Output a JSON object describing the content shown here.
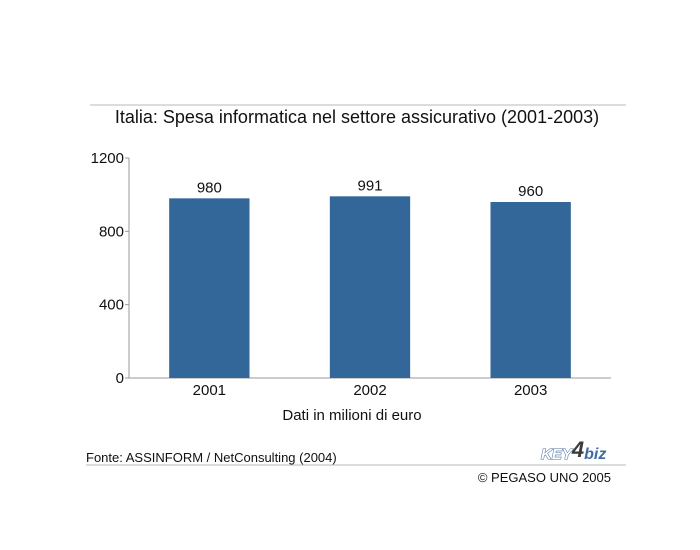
{
  "chart_data": {
    "type": "bar",
    "title": "Italia: Spesa informatica nel settore assicurativo (2001-2003)",
    "categories": [
      "2001",
      "2002",
      "2003"
    ],
    "values": [
      980,
      991,
      960
    ],
    "data_labels": [
      "980",
      "991",
      "960"
    ],
    "xlabel": "Dati in milioni di euro",
    "ylabel": "",
    "ylim": [
      0,
      1200
    ],
    "yticks": [
      0,
      400,
      800,
      1200
    ],
    "grid": false,
    "legend": "none",
    "bar_color": "#336699"
  },
  "footer": {
    "source": "Fonte: ASSINFORM / NetConsulting (2004)",
    "copyright": "© PEGASO UNO 2005",
    "logo_text": "KEY4biz"
  }
}
